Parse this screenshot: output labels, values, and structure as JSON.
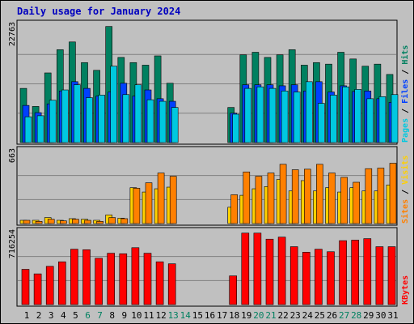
{
  "chart_data": [
    {
      "type": "bar",
      "title": "Daily usage for January 2024",
      "panel": "top",
      "ymax_label": "22763",
      "ylim": [
        0,
        22763
      ],
      "grid": true,
      "side_label": [
        {
          "text": "Pages",
          "color": "#00c8e0"
        },
        {
          "text": " / ",
          "color": "#000000"
        },
        {
          "text": "Files",
          "color": "#0040ff"
        },
        {
          "text": " / ",
          "color": "#000000"
        },
        {
          "text": "Hits",
          "color": "#008060"
        }
      ],
      "categories": [
        1,
        2,
        3,
        4,
        5,
        6,
        7,
        8,
        9,
        10,
        11,
        12,
        13,
        14,
        15,
        16,
        17,
        18,
        19,
        20,
        21,
        22,
        23,
        24,
        25,
        26,
        27,
        28,
        29,
        30,
        31
      ],
      "series": [
        {
          "name": "Hits",
          "color": "#008060",
          "values": [
            10500,
            7000,
            13500,
            18000,
            19500,
            15500,
            14000,
            22500,
            16500,
            15500,
            15000,
            16800,
            11500,
            0,
            0,
            0,
            0,
            6800,
            17000,
            17500,
            16500,
            17000,
            18000,
            15000,
            15500,
            15200,
            17500,
            16200,
            14800,
            15200,
            13200
          ]
        },
        {
          "name": "Files",
          "color": "#0040ff",
          "values": [
            7200,
            5800,
            7500,
            10000,
            11800,
            10500,
            9000,
            9800,
            11500,
            9000,
            10200,
            8500,
            8000,
            0,
            0,
            0,
            0,
            5700,
            11200,
            11200,
            11200,
            11000,
            11200,
            10000,
            11800,
            9800,
            11000,
            9900,
            10000,
            8500,
            7800
          ]
        },
        {
          "name": "Pages",
          "color": "#00c8e0",
          "values": [
            5000,
            5200,
            8200,
            10200,
            11200,
            8700,
            9200,
            14800,
            9300,
            11200,
            8300,
            8000,
            6800,
            0,
            0,
            0,
            0,
            5500,
            10500,
            10800,
            10500,
            10000,
            9800,
            11800,
            7600,
            9200,
            10800,
            10300,
            8500,
            8900,
            9300
          ]
        }
      ]
    },
    {
      "type": "bar",
      "panel": "middle",
      "ymax_label": "663",
      "ylim": [
        0,
        663
      ],
      "grid": true,
      "side_label": [
        {
          "text": "Sites",
          "color": "#ff8000"
        },
        {
          "text": " / ",
          "color": "#000000"
        },
        {
          "text": "Visits",
          "color": "#ffd000"
        }
      ],
      "categories": [
        1,
        2,
        3,
        4,
        5,
        6,
        7,
        8,
        9,
        10,
        11,
        12,
        13,
        14,
        15,
        16,
        17,
        18,
        19,
        20,
        21,
        22,
        23,
        24,
        25,
        26,
        27,
        28,
        29,
        30,
        31
      ],
      "series": [
        {
          "name": "Visits",
          "color": "#ffd000",
          "values": [
            30,
            30,
            55,
            30,
            45,
            40,
            30,
            80,
            50,
            330,
            290,
            320,
            335,
            0,
            0,
            0,
            0,
            150,
            260,
            320,
            340,
            405,
            300,
            395,
            300,
            330,
            290,
            330,
            300,
            300,
            355
          ]
        },
        {
          "name": "Sites",
          "color": "#ff8000",
          "values": [
            30,
            20,
            40,
            25,
            40,
            30,
            20,
            55,
            45,
            325,
            375,
            465,
            435,
            0,
            0,
            0,
            0,
            265,
            475,
            435,
            465,
            545,
            495,
            500,
            545,
            465,
            425,
            380,
            505,
            510,
            555
          ]
        }
      ]
    },
    {
      "type": "bar",
      "panel": "bottom",
      "ymax_label": "716254",
      "ylim": [
        0,
        716254
      ],
      "grid": true,
      "side_label": [
        {
          "text": "KBytes",
          "color": "#ff0000"
        }
      ],
      "categories": [
        1,
        2,
        3,
        4,
        5,
        6,
        7,
        8,
        9,
        10,
        11,
        12,
        13,
        14,
        15,
        16,
        17,
        18,
        19,
        20,
        21,
        22,
        23,
        24,
        25,
        26,
        27,
        28,
        29,
        30,
        31
      ],
      "series": [
        {
          "name": "KBytes",
          "color": "#ff0000",
          "values": [
            350000,
            305000,
            380000,
            425000,
            550000,
            545000,
            460000,
            510000,
            505000,
            565000,
            510000,
            425000,
            405000,
            0,
            0,
            0,
            0,
            285000,
            710000,
            710000,
            650000,
            670000,
            575000,
            520000,
            550000,
            525000,
            635000,
            640000,
            655000,
            575000,
            575000
          ]
        }
      ]
    }
  ],
  "day_labels": [
    {
      "text": "1",
      "color": "#000000"
    },
    {
      "text": "2",
      "color": "#000000"
    },
    {
      "text": "3",
      "color": "#000000"
    },
    {
      "text": "4",
      "color": "#000000"
    },
    {
      "text": "5",
      "color": "#000000"
    },
    {
      "text": "6",
      "color": "#008060"
    },
    {
      "text": "7",
      "color": "#008060"
    },
    {
      "text": "8",
      "color": "#000000"
    },
    {
      "text": "9",
      "color": "#000000"
    },
    {
      "text": "10",
      "color": "#000000"
    },
    {
      "text": "11",
      "color": "#000000"
    },
    {
      "text": "12",
      "color": "#000000"
    },
    {
      "text": "13",
      "color": "#008060"
    },
    {
      "text": "14",
      "color": "#008060"
    },
    {
      "text": "15",
      "color": "#000000"
    },
    {
      "text": "16",
      "color": "#000000"
    },
    {
      "text": "17",
      "color": "#000000"
    },
    {
      "text": "18",
      "color": "#000000"
    },
    {
      "text": "19",
      "color": "#000000"
    },
    {
      "text": "20",
      "color": "#008060"
    },
    {
      "text": "21",
      "color": "#008060"
    },
    {
      "text": "22",
      "color": "#000000"
    },
    {
      "text": "23",
      "color": "#000000"
    },
    {
      "text": "24",
      "color": "#000000"
    },
    {
      "text": "25",
      "color": "#000000"
    },
    {
      "text": "26",
      "color": "#000000"
    },
    {
      "text": "27",
      "color": "#008060"
    },
    {
      "text": "28",
      "color": "#008060"
    },
    {
      "text": "29",
      "color": "#000000"
    },
    {
      "text": "30",
      "color": "#000000"
    },
    {
      "text": "31",
      "color": "#000000"
    }
  ],
  "colors": {
    "background": "#c0c0c0",
    "title": "#0000c0",
    "grid": "#808080",
    "panel_border": "#000000"
  }
}
